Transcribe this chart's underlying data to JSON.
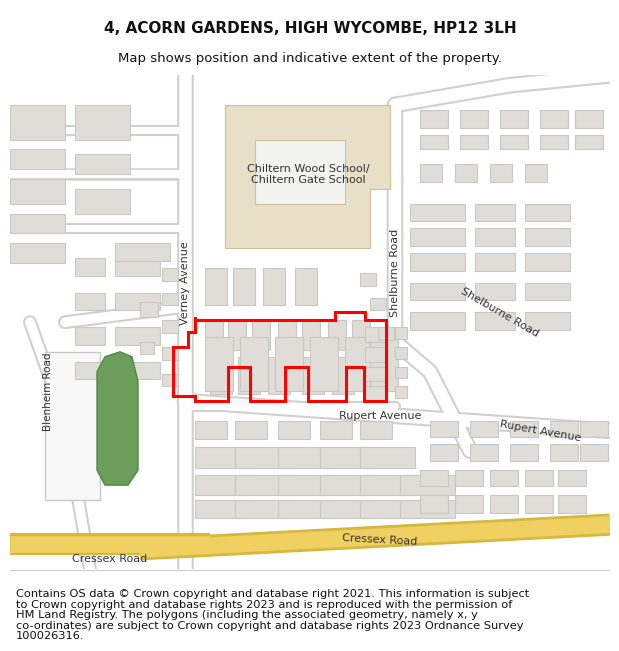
{
  "title_line1": "4, ACORN GARDENS, HIGH WYCOMBE, HP12 3LH",
  "title_line2": "Map shows position and indicative extent of the property.",
  "copyright_text": "Contains OS data © Crown copyright and database right 2021. This information is subject to Crown copyright and database rights 2023 and is reproduced with the permission of HM Land Registry. The polygons (including the associated geometry, namely x, y co-ordinates) are subject to Crown copyright and database rights 2023 Ordnance Survey 100026316.",
  "title_fontsize": 11,
  "subtitle_fontsize": 10,
  "copyright_fontsize": 8.5,
  "map_bg": "#f2f2f0",
  "road_color": "#ffffff",
  "road_outline": "#d0d0d0",
  "building_color": "#e0ddd8",
  "building_outline": "#c8c8c4",
  "green_color": "#6a9e5a",
  "school_bg": "#e8dfc8",
  "school_outline": "#d0c09a",
  "red_polygon_color": "#ff0000",
  "road_yellow": "#f0d060",
  "road_yellow_outline": "#d4b840",
  "figure_bg": "#ffffff"
}
